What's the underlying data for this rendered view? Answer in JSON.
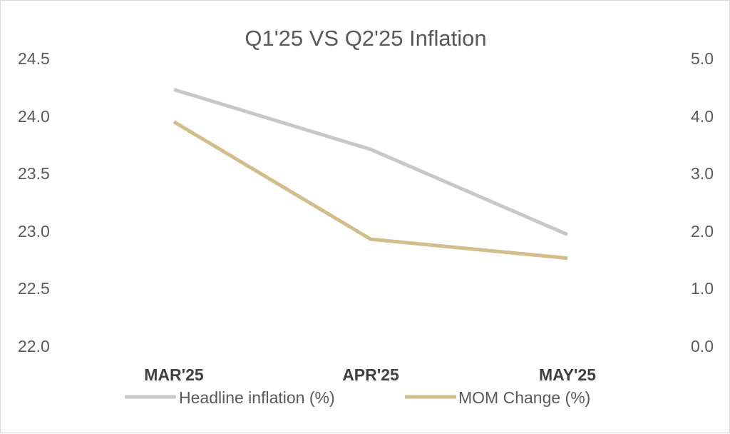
{
  "chart_data": {
    "type": "line",
    "title": "Q1'25 VS Q2'25 Inflation",
    "categories": [
      "MAR'25",
      "APR'25",
      "MAY'25"
    ],
    "y_left": {
      "ticks": [
        "24.5",
        "24.0",
        "23.5",
        "23.0",
        "22.5",
        "22.0"
      ],
      "range": [
        22.0,
        24.5
      ]
    },
    "y_right": {
      "ticks": [
        "5.0",
        "4.0",
        "3.0",
        "2.0",
        "1.0",
        "0.0"
      ],
      "range": [
        0.0,
        5.0
      ]
    },
    "series": [
      {
        "name": "Headline inflation (%)",
        "axis": "left",
        "values": [
          24.23,
          23.71,
          22.97
        ],
        "color": "#c8c8c8"
      },
      {
        "name": "MOM Change (%)",
        "axis": "right",
        "values": [
          3.9,
          1.86,
          1.53
        ],
        "color": "#d4bd8c"
      }
    ],
    "grid": false,
    "legend": "bottom"
  }
}
